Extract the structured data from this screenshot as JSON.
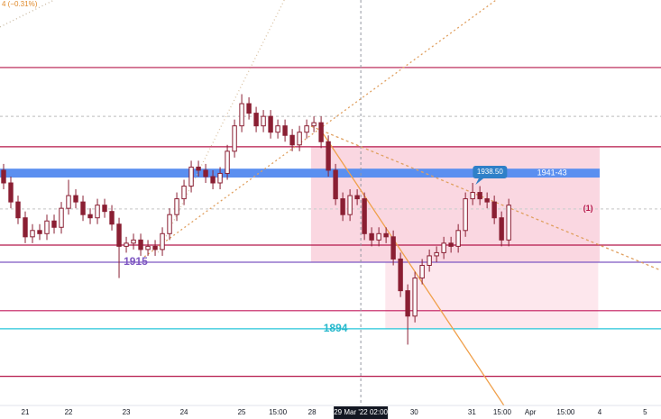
{
  "chart_data": {
    "type": "candlestick",
    "header_text": "4 (−0.31%)",
    "xlim": [
      0,
      91.6
    ],
    "ylim": [
      1869.8,
      1997.7
    ],
    "xticks": [
      {
        "value": 3.5,
        "label": "21"
      },
      {
        "value": 9.5,
        "label": "22"
      },
      {
        "value": 17.5,
        "label": "23"
      },
      {
        "value": 25.5,
        "label": "24"
      },
      {
        "value": 33.5,
        "label": "25"
      },
      {
        "value": 38.5,
        "label": "15:00"
      },
      {
        "value": 43.25,
        "label": "28"
      },
      {
        "value": 50,
        "label": "29 Mar '22  02:00"
      },
      {
        "value": 57.4,
        "label": "30"
      },
      {
        "value": 65.4,
        "label": "31"
      },
      {
        "value": 69.6,
        "label": "15:00"
      },
      {
        "value": 73.5,
        "label": "Apr"
      },
      {
        "value": 78.4,
        "label": "15:00"
      },
      {
        "value": 83.1,
        "label": "4"
      },
      {
        "value": 89.4,
        "label": "5"
      }
    ],
    "highlight_tick": 7,
    "candle_color": "#8a1f33",
    "candles": {
      "x": [
        0.5,
        1.5,
        2.5,
        3.5,
        4.5,
        5.5,
        6.5,
        7.5,
        8.5,
        9.5,
        10.5,
        11.5,
        12.5,
        13.5,
        14.5,
        15.5,
        16.5,
        17.5,
        18.5,
        19.5,
        20.5,
        21.5,
        22.5,
        23.5,
        24.5,
        25.5,
        26.5,
        27.5,
        28.5,
        29.5,
        30.5,
        31.5,
        32.5,
        33.5,
        34.5,
        35.5,
        36.5,
        37.5,
        38.5,
        39.5,
        40.5,
        41.5,
        42.5,
        43.5,
        44.5,
        45.5,
        46.5,
        47.5,
        48.5,
        49.5,
        50.5,
        51.5,
        52.5,
        53.5,
        54.5,
        55.5,
        56.5,
        57.5,
        58.5,
        59.5,
        60.5,
        61.5,
        62.5,
        63.5,
        64.5,
        65.5,
        66.5,
        67.5,
        68.5,
        69.5,
        70.5
      ],
      "open": [
        1944,
        1940,
        1934,
        1929,
        1923,
        1925,
        1924,
        1928,
        1926,
        1932,
        1936,
        1934,
        1930,
        1929,
        1933,
        1931,
        1927,
        1920,
        1921,
        1922,
        1919,
        1920,
        1919,
        1924,
        1930,
        1935,
        1939,
        1945,
        1944,
        1942,
        1940,
        1943,
        1950,
        1958,
        1965,
        1962,
        1958,
        1961,
        1956,
        1958,
        1955,
        1952,
        1956,
        1958,
        1959,
        1953,
        1944,
        1935,
        1930,
        1936,
        1935,
        1924,
        1922,
        1924,
        1923,
        1916,
        1906,
        1898,
        1910,
        1914,
        1917,
        1918,
        1921,
        1920,
        1925,
        1935,
        1937,
        1935,
        1934,
        1929,
        1922
      ],
      "high": [
        1946,
        1942,
        1936,
        1931,
        1927,
        1927,
        1930,
        1930,
        1934,
        1941,
        1938,
        1936,
        1932,
        1935,
        1935,
        1933,
        1929,
        1923,
        1924,
        1924,
        1922,
        1922,
        1926,
        1932,
        1937,
        1941,
        1947,
        1947,
        1946,
        1944,
        1945,
        1952,
        1960,
        1968,
        1967,
        1964,
        1963,
        1963,
        1960,
        1960,
        1957,
        1958,
        1960,
        1961,
        1961,
        1955,
        1946,
        1937,
        1938,
        1938,
        1937,
        1926,
        1926,
        1926,
        1925,
        1918,
        1908,
        1912,
        1916,
        1919,
        1920,
        1923,
        1923,
        1927,
        1937,
        1940,
        1939,
        1937,
        1936,
        1931,
        1935
      ],
      "low": [
        1938,
        1932,
        1927,
        1921,
        1921,
        1922,
        1922,
        1924,
        1924,
        1930,
        1932,
        1928,
        1927,
        1927,
        1929,
        1925,
        1910,
        1918,
        1919,
        1917,
        1917,
        1917,
        1917,
        1922,
        1928,
        1933,
        1937,
        1942,
        1940,
        1938,
        1938,
        1941,
        1948,
        1956,
        1960,
        1956,
        1956,
        1954,
        1954,
        1953,
        1950,
        1950,
        1954,
        1956,
        1951,
        1942,
        1933,
        1928,
        1928,
        1933,
        1922,
        1920,
        1920,
        1921,
        1914,
        1904,
        1889,
        1896,
        1908,
        1912,
        1915,
        1916,
        1918,
        1918,
        1923,
        1933,
        1933,
        1932,
        1927,
        1920,
        1920
      ],
      "close": [
        1940,
        1934,
        1929,
        1923,
        1925,
        1924,
        1928,
        1926,
        1932,
        1936,
        1934,
        1930,
        1929,
        1933,
        1931,
        1927,
        1920,
        1921,
        1922,
        1919,
        1920,
        1919,
        1924,
        1930,
        1935,
        1939,
        1945,
        1944,
        1942,
        1940,
        1943,
        1950,
        1958,
        1965,
        1962,
        1958,
        1961,
        1956,
        1958,
        1955,
        1952,
        1956,
        1958,
        1959,
        1953,
        1944,
        1935,
        1930,
        1936,
        1935,
        1924,
        1922,
        1924,
        1923,
        1916,
        1906,
        1898,
        1910,
        1914,
        1917,
        1918,
        1921,
        1920,
        1925,
        1935,
        1937,
        1935,
        1934,
        1929,
        1922,
        1933
      ]
    },
    "zones": [
      {
        "x": [
          43.1,
          83.1
        ],
        "y": [
          1915,
          1951.4
        ],
        "color": "#f8c6d4"
      },
      {
        "x": [
          53.4,
          82.9
        ],
        "y": [
          1894,
          1915
        ],
        "color": "#fcdde6"
      },
      {
        "x": [
          0,
          83.1
        ],
        "y": [
          1941.7,
          1944.5
        ],
        "color": "#5b8ff0"
      }
    ],
    "levels": [
      {
        "value": 1976.4,
        "color": "#b5174a",
        "dash": false
      },
      {
        "value": 1961,
        "color": "#c8c8c8",
        "dash": true
      },
      {
        "value": 1951.4,
        "color": "#b5174a",
        "dash": false
      },
      {
        "value": 1931.8,
        "color": "#cfcfcf",
        "dash": true
      },
      {
        "value": 1920.4,
        "color": "#b5174a",
        "dash": false
      },
      {
        "value": 1915,
        "color": "#7e57c2",
        "dash": false
      },
      {
        "value": 1899.7,
        "color": "#c2185b",
        "dash": false
      },
      {
        "value": 1894,
        "color": "#26c6da",
        "dash": false
      },
      {
        "value": 1879,
        "color": "#b5174a",
        "dash": false
      }
    ],
    "trendlines": [
      {
        "x": [
          44.5,
          70.25
        ],
        "y": [
          1956.5,
          1868.4
        ],
        "color": "#f0a04b",
        "dash": "none"
      },
      {
        "x": [
          20,
          68.75
        ],
        "y": [
          1916.7,
          1997.7
        ],
        "color": "#e0a060",
        "dash": "2 3"
      },
      {
        "x": [
          43.1,
          91.6
        ],
        "y": [
          1957.9,
          1912.4
        ],
        "color": "#e0a060",
        "dash": "3 3"
      },
      {
        "x": [
          21.9,
          39.4
        ],
        "y": [
          1918.1,
          1997.7
        ],
        "color": "#d8c0a0",
        "dash": "1 3"
      },
      {
        "x": [
          0,
          7.5
        ],
        "y": [
          1989.2,
          1997.7
        ],
        "color": "#c8b8a0",
        "dash": "1 3"
      }
    ],
    "annotations": [
      {
        "text": "1915",
        "x": 18.8,
        "y": 1915,
        "color": "#7e57c2",
        "style": "plain"
      },
      {
        "text": "1894",
        "x": 46.5,
        "y": 1894,
        "color": "#26b8cc",
        "style": "plain"
      },
      {
        "text": "1938.50",
        "x": 67.9,
        "y": 1943.4,
        "color": "#ffffff",
        "style": "box"
      },
      {
        "text": "1941-43",
        "x": 76.5,
        "y": 1943.1,
        "color": "#ffffff",
        "style": "plain"
      },
      {
        "text": "(1)",
        "x": 81.5,
        "y": 1931.8,
        "color": "#b5174a",
        "style": "plain"
      }
    ]
  }
}
